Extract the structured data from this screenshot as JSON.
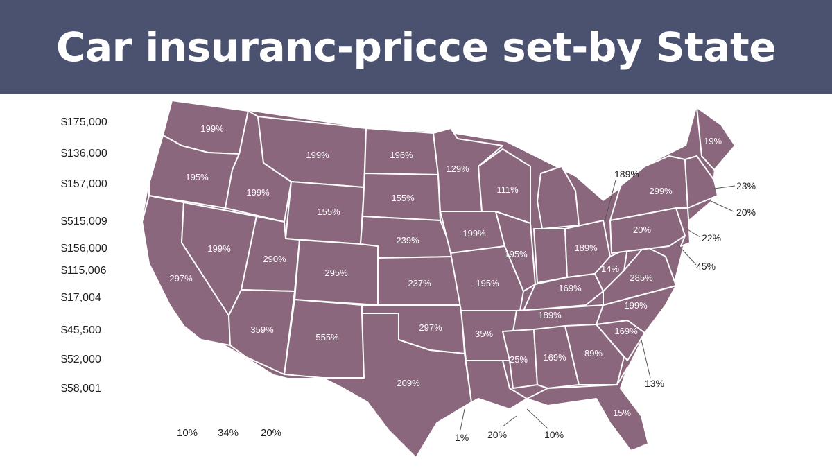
{
  "header": {
    "title": "Car insuranc-pricce set-by State",
    "background": "#4b5270"
  },
  "colors": {
    "state_fill": "#8a677d",
    "state_border": "#ffffff"
  },
  "legend": {
    "values": [
      "$175,000",
      "$136,000",
      "$157,000",
      "$515,009",
      "$156,000",
      "$115,006",
      "$17,004",
      "$45,500",
      "$52,000",
      "$58,001"
    ]
  },
  "bottom_labels": [
    "10%",
    "34%",
    "20%"
  ],
  "map": {
    "states": [
      {
        "name": "WA",
        "label": "199%"
      },
      {
        "name": "OR",
        "label": "195%"
      },
      {
        "name": "CA",
        "label": "297%"
      },
      {
        "name": "NV",
        "label": "199%"
      },
      {
        "name": "ID",
        "label": "199%"
      },
      {
        "name": "MT",
        "label": "199%"
      },
      {
        "name": "WY",
        "label": "155%"
      },
      {
        "name": "UT",
        "label": "290%"
      },
      {
        "name": "CO",
        "label": "295%"
      },
      {
        "name": "AZ",
        "label": "359%"
      },
      {
        "name": "NM",
        "label": "555%"
      },
      {
        "name": "ND",
        "label": "196%"
      },
      {
        "name": "SD",
        "label": "155%"
      },
      {
        "name": "NE",
        "label": "239%"
      },
      {
        "name": "KS",
        "label": "237%"
      },
      {
        "name": "OK",
        "label": "297%"
      },
      {
        "name": "TX",
        "label": "209%"
      },
      {
        "name": "MN",
        "label": "129%"
      },
      {
        "name": "IA",
        "label": "199%"
      },
      {
        "name": "MO",
        "label": "195%"
      },
      {
        "name": "AR",
        "label": "35%"
      },
      {
        "name": "LA",
        "label": ""
      },
      {
        "name": "WI",
        "label": "111%"
      },
      {
        "name": "IL",
        "label": "195%"
      },
      {
        "name": "MI",
        "label": ""
      },
      {
        "name": "IN",
        "label": ""
      },
      {
        "name": "OH",
        "label": "189%"
      },
      {
        "name": "KY",
        "label": "169%"
      },
      {
        "name": "TN",
        "label": "189%"
      },
      {
        "name": "MS",
        "label": "25%"
      },
      {
        "name": "AL",
        "label": "169%"
      },
      {
        "name": "GA",
        "label": "89%"
      },
      {
        "name": "FL",
        "label": "15%"
      },
      {
        "name": "SC",
        "label": "169%"
      },
      {
        "name": "NC",
        "label": "199%"
      },
      {
        "name": "VA",
        "label": "285%"
      },
      {
        "name": "WV",
        "label": "14%"
      },
      {
        "name": "PA",
        "label": "20%"
      },
      {
        "name": "NY",
        "label": "299%"
      },
      {
        "name": "ME",
        "label": "19%"
      },
      {
        "name": "NE-states",
        "label": ""
      }
    ],
    "callouts": [
      "189%",
      "23%",
      "20%",
      "22%",
      "45%",
      "13%",
      "1%",
      "20%",
      "10%"
    ]
  }
}
